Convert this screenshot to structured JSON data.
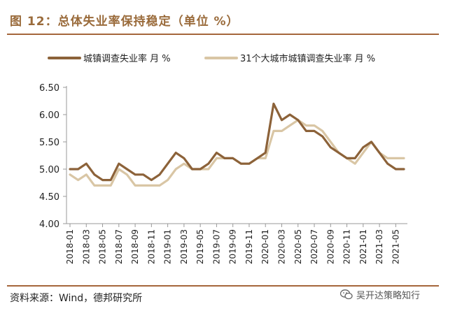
{
  "header": {
    "title": "图 12：总体失业率保持稳定（单位 %）"
  },
  "footer": {
    "source": "资料来源：Wind，德邦研究所",
    "watermark": "吴开达策略知行"
  },
  "icons": {
    "watermark_icon": "wechat-icon"
  },
  "colors": {
    "series_1": "#8c6239",
    "series_2": "#d9c6a5",
    "accent": "#a5663b"
  },
  "chart_data": {
    "type": "line",
    "title": "",
    "xlabel": "",
    "ylabel": "",
    "ylim": [
      4.0,
      6.5
    ],
    "yticks": [
      "4.00",
      "4.50",
      "5.00",
      "5.50",
      "6.00",
      "6.50"
    ],
    "legend_position": "top",
    "xtick_labels": [
      "2018-01",
      "2018-03",
      "2018-05",
      "2018-07",
      "2018-09",
      "2018-11",
      "2019-01",
      "2019-03",
      "2019-05",
      "2019-07",
      "2019-09",
      "2019-11",
      "2020-01",
      "2020-03",
      "2020-05",
      "2020-07",
      "2020-09",
      "2020-11",
      "2021-01",
      "2021-03",
      "2021-05"
    ],
    "x": [
      "2018-01",
      "2018-02",
      "2018-03",
      "2018-04",
      "2018-05",
      "2018-06",
      "2018-07",
      "2018-08",
      "2018-09",
      "2018-10",
      "2018-11",
      "2018-12",
      "2019-01",
      "2019-02",
      "2019-03",
      "2019-04",
      "2019-05",
      "2019-06",
      "2019-07",
      "2019-08",
      "2019-09",
      "2019-10",
      "2019-11",
      "2019-12",
      "2020-01",
      "2020-02",
      "2020-03",
      "2020-04",
      "2020-05",
      "2020-06",
      "2020-07",
      "2020-08",
      "2020-09",
      "2020-10",
      "2020-11",
      "2020-12",
      "2021-01",
      "2021-02",
      "2021-03",
      "2021-04",
      "2021-05",
      "2021-06"
    ],
    "series": [
      {
        "name": "城镇调查失业率  月 %",
        "values": [
          5.0,
          5.0,
          5.1,
          4.9,
          4.8,
          4.8,
          5.1,
          5.0,
          4.9,
          4.9,
          4.8,
          4.9,
          5.1,
          5.3,
          5.2,
          5.0,
          5.0,
          5.1,
          5.3,
          5.2,
          5.2,
          5.1,
          5.1,
          5.2,
          5.3,
          6.2,
          5.9,
          6.0,
          5.9,
          5.7,
          5.7,
          5.6,
          5.4,
          5.3,
          5.2,
          5.2,
          5.4,
          5.5,
          5.3,
          5.1,
          5.0,
          5.0
        ]
      },
      {
        "name": "31个大城市城镇调查失业率  月 %",
        "values": [
          4.9,
          4.8,
          4.9,
          4.7,
          4.7,
          4.7,
          5.0,
          4.9,
          4.7,
          4.7,
          4.7,
          4.7,
          4.8,
          5.0,
          5.1,
          5.0,
          5.0,
          5.0,
          5.2,
          5.2,
          5.2,
          5.1,
          5.1,
          5.2,
          5.2,
          5.7,
          5.7,
          5.8,
          5.9,
          5.8,
          5.8,
          5.7,
          5.5,
          5.3,
          5.2,
          5.1,
          5.3,
          5.5,
          5.3,
          5.2,
          5.2,
          5.2
        ]
      }
    ]
  }
}
